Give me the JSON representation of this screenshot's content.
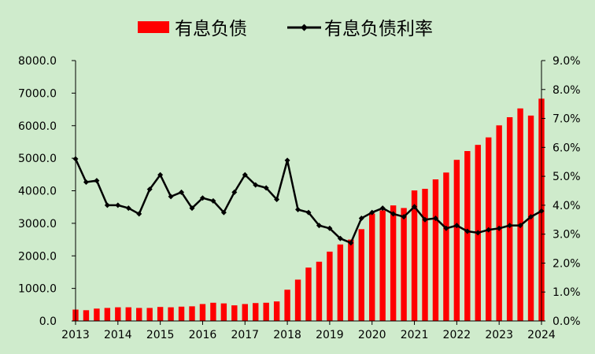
{
  "chart_data": {
    "type": "bar+line",
    "title": "",
    "legend": {
      "placement": "top-center",
      "entries": [
        "有息负债",
        "有息负债利率"
      ]
    },
    "colors": {
      "bar": "#ff0000",
      "line": "#000000",
      "background": "#cfebcc"
    },
    "x_axis": {
      "tick_labels": [
        "2013",
        "2014",
        "2015",
        "2016",
        "2017",
        "2018",
        "2019",
        "2020",
        "2021",
        "2022",
        "2023",
        "2024"
      ]
    },
    "y_left": {
      "range": [
        0,
        8000
      ],
      "tick_labels": [
        "0.0",
        "1000.0",
        "2000.0",
        "3000.0",
        "4000.0",
        "5000.0",
        "6000.0",
        "7000.0",
        "8000.0"
      ]
    },
    "y_right": {
      "range": [
        0,
        9
      ],
      "unit": "%",
      "tick_labels": [
        "0.0%",
        "1.0%",
        "2.0%",
        "3.0%",
        "4.0%",
        "5.0%",
        "6.0%",
        "7.0%",
        "8.0%",
        "9.0%"
      ]
    },
    "grid": false,
    "quarters": [
      "2013Q1",
      "2013Q2",
      "2013Q3",
      "2013Q4",
      "2014Q1",
      "2014Q2",
      "2014Q3",
      "2014Q4",
      "2015Q1",
      "2015Q2",
      "2015Q3",
      "2015Q4",
      "2016Q1",
      "2016Q2",
      "2016Q3",
      "2016Q4",
      "2017Q1",
      "2017Q2",
      "2017Q3",
      "2017Q4",
      "2018Q1",
      "2018Q2",
      "2018Q3",
      "2018Q4",
      "2019Q1",
      "2019Q2",
      "2019Q3",
      "2019Q4",
      "2020Q1",
      "2020Q2",
      "2020Q3",
      "2020Q4",
      "2021Q1",
      "2021Q2",
      "2021Q3",
      "2021Q4",
      "2022Q1",
      "2022Q2",
      "2022Q3",
      "2022Q4",
      "2023Q1",
      "2023Q2",
      "2023Q3",
      "2023Q4",
      "2024Q1"
    ],
    "series": [
      {
        "name": "有息负债",
        "type": "bar",
        "axis": "left",
        "values": [
          350,
          330,
          380,
          400,
          420,
          420,
          400,
          400,
          430,
          420,
          440,
          450,
          520,
          560,
          540,
          480,
          520,
          550,
          560,
          600,
          960,
          1270,
          1640,
          1820,
          2130,
          2350,
          2500,
          2820,
          3300,
          3400,
          3550,
          3470,
          4010,
          4060,
          4350,
          4560,
          4950,
          5220,
          5410,
          5640,
          6010,
          6260,
          6530,
          6310,
          6830
        ]
      },
      {
        "name": "有息负债利率",
        "type": "line",
        "axis": "right",
        "values": [
          5.6,
          4.8,
          4.85,
          4.0,
          4.0,
          3.9,
          3.7,
          4.55,
          5.05,
          4.3,
          4.45,
          3.9,
          4.25,
          4.15,
          3.75,
          4.45,
          5.05,
          4.7,
          4.6,
          4.2,
          5.55,
          3.85,
          3.75,
          3.3,
          3.2,
          2.85,
          2.7,
          3.55,
          3.75,
          3.9,
          3.7,
          3.6,
          3.95,
          3.5,
          3.55,
          3.2,
          3.3,
          3.1,
          3.05,
          3.15,
          3.2,
          3.3,
          3.3,
          3.6,
          3.8
        ]
      }
    ]
  }
}
